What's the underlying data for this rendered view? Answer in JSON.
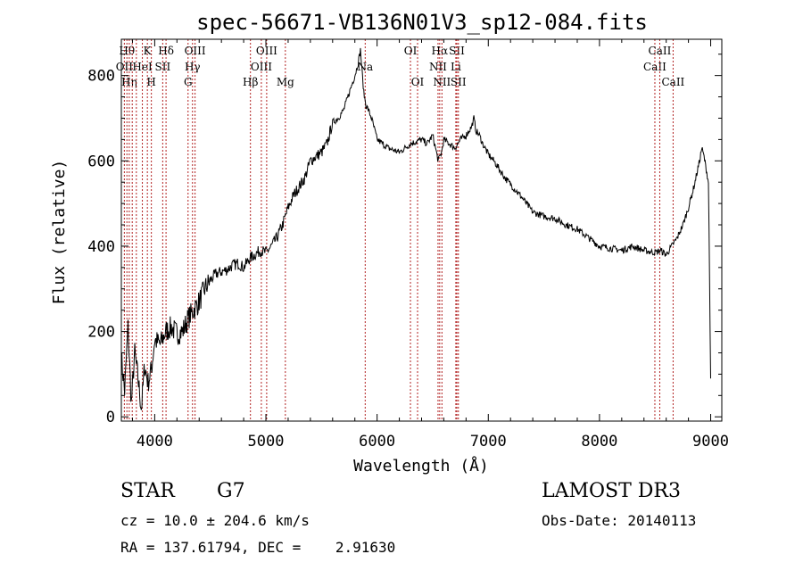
{
  "chart_data": {
    "type": "line",
    "title": "spec-56671-VB136N01V3_sp12-084.fits",
    "xlabel": "Wavelength (Å)",
    "ylabel": "Flux (relative)",
    "xlim": [
      3700,
      9100
    ],
    "ylim": [
      -10,
      885
    ],
    "xticks": [
      4000,
      5000,
      6000,
      7000,
      8000,
      9000
    ],
    "yticks": [
      0,
      200,
      400,
      600,
      800
    ],
    "grid": false,
    "series": [
      {
        "name": "flux",
        "x": [
          3700,
          3730,
          3760,
          3790,
          3820,
          3850,
          3880,
          3910,
          3940,
          3970,
          4000,
          4050,
          4100,
          4150,
          4200,
          4250,
          4300,
          4350,
          4400,
          4450,
          4500,
          4550,
          4600,
          4650,
          4700,
          4750,
          4800,
          4850,
          4900,
          4950,
          5000,
          5050,
          5100,
          5150,
          5200,
          5250,
          5300,
          5350,
          5400,
          5450,
          5500,
          5550,
          5600,
          5650,
          5700,
          5750,
          5800,
          5830,
          5850,
          5880,
          5900,
          5920,
          5950,
          6000,
          6050,
          6100,
          6150,
          6200,
          6250,
          6300,
          6350,
          6400,
          6450,
          6500,
          6550,
          6580,
          6600,
          6650,
          6700,
          6750,
          6800,
          6850,
          6870,
          6890,
          6920,
          6950,
          7000,
          7050,
          7100,
          7150,
          7200,
          7300,
          7400,
          7500,
          7600,
          7700,
          7800,
          7900,
          8000,
          8100,
          8200,
          8300,
          8400,
          8500,
          8550,
          8600,
          8650,
          8700,
          8750,
          8800,
          8850,
          8900,
          8920,
          8940,
          8960,
          8980,
          9000
        ],
        "y": [
          140,
          60,
          210,
          30,
          150,
          90,
          20,
          120,
          80,
          110,
          180,
          170,
          200,
          210,
          195,
          200,
          230,
          250,
          270,
          300,
          320,
          335,
          340,
          345,
          355,
          360,
          350,
          370,
          380,
          390,
          385,
          400,
          420,
          450,
          490,
          520,
          540,
          560,
          600,
          610,
          620,
          640,
          690,
          700,
          720,
          760,
          800,
          830,
          860,
          760,
          730,
          720,
          700,
          650,
          640,
          630,
          625,
          620,
          630,
          640,
          645,
          650,
          640,
          660,
          600,
          620,
          650,
          640,
          630,
          650,
          660,
          680,
          700,
          670,
          660,
          640,
          615,
          600,
          580,
          560,
          545,
          515,
          480,
          470,
          465,
          450,
          440,
          420,
          400,
          395,
          390,
          400,
          390,
          385,
          390,
          380,
          400,
          420,
          450,
          490,
          540,
          600,
          630,
          610,
          580,
          550,
          90
        ]
      }
    ],
    "lines": [
      {
        "w": 3750,
        "label": "Hθ",
        "row": 0
      },
      {
        "w": 3727,
        "label": "OII",
        "row": 1
      },
      {
        "w": 3771,
        "label": "Hη",
        "row": 2
      },
      {
        "w": 3798,
        "label": "",
        "row": -1
      },
      {
        "w": 3835,
        "label": "",
        "row": -1
      },
      {
        "w": 3889,
        "label": "HeI",
        "row": 1
      },
      {
        "w": 3934,
        "label": "K",
        "row": 0
      },
      {
        "w": 3970,
        "label": "H",
        "row": 2
      },
      {
        "w": 4072,
        "label": "SII",
        "row": 1
      },
      {
        "w": 4102,
        "label": "Hδ",
        "row": 0
      },
      {
        "w": 4300,
        "label": "G",
        "row": 2
      },
      {
        "w": 4340,
        "label": "Hγ",
        "row": 1
      },
      {
        "w": 4363,
        "label": "OIII",
        "row": 0
      },
      {
        "w": 4861,
        "label": "Hβ",
        "row": 2
      },
      {
        "w": 4959,
        "label": "OIII",
        "row": 1
      },
      {
        "w": 5007,
        "label": "OIII",
        "row": 0
      },
      {
        "w": 5175,
        "label": "Mg",
        "row": 2
      },
      {
        "w": 5893,
        "label": "Na",
        "row": 1
      },
      {
        "w": 6300,
        "label": "OI",
        "row": 0
      },
      {
        "w": 6364,
        "label": "OI",
        "row": 2
      },
      {
        "w": 6548,
        "label": "NII",
        "row": 1
      },
      {
        "w": 6563,
        "label": "Hα",
        "row": 0
      },
      {
        "w": 6583,
        "label": "NII",
        "row": 2
      },
      {
        "w": 6708,
        "label": "Li",
        "row": 1
      },
      {
        "w": 6717,
        "label": "SII",
        "row": 0
      },
      {
        "w": 6731,
        "label": "SII",
        "row": 2
      },
      {
        "w": 8498,
        "label": "CaII",
        "row": 1
      },
      {
        "w": 8542,
        "label": "CaII",
        "row": 0
      },
      {
        "w": 8662,
        "label": "CaII",
        "row": 2
      }
    ]
  },
  "info": {
    "class_label": "STAR",
    "subclass": "G7",
    "survey": "LAMOST DR3",
    "cz": "cz = 10.0 ± 204.6 km/s",
    "obs_date": "Obs-Date: 20140113",
    "coords": "RA = 137.61794, DEC =    2.91630"
  },
  "colors": {
    "spectrum": "#000000",
    "line_marker": "#b22222",
    "axis": "#000000"
  }
}
